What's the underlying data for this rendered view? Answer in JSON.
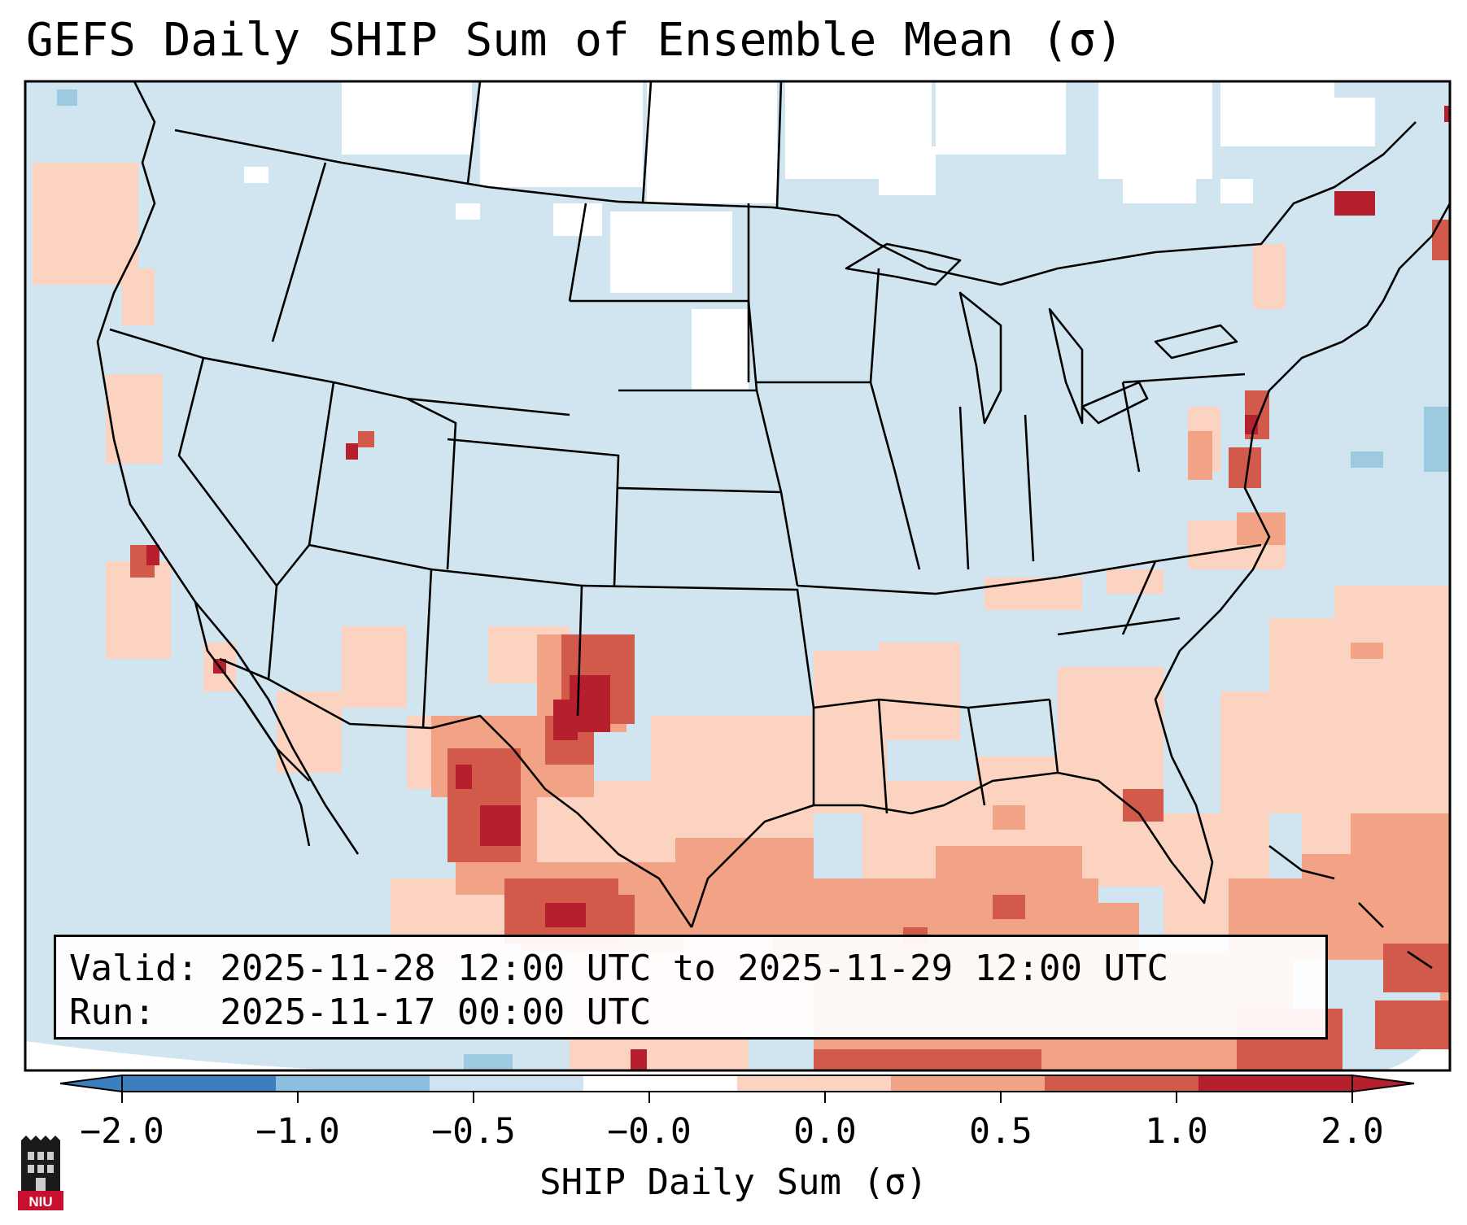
{
  "title": "GEFS Daily SHIP Sum of Ensemble Mean (σ)",
  "info": {
    "valid_line": "Valid: 2025-11-28 12:00 UTC to 2025-11-29 12:00 UTC",
    "run_line": "Run:   2025-11-17 00:00 UTC"
  },
  "colorbar": {
    "label": "SHIP Daily Sum (σ)",
    "ticks": [
      "−2.0",
      "−1.0",
      "−0.5",
      "−0.0",
      "0.0",
      "0.5",
      "1.0",
      "2.0"
    ],
    "colors": [
      "#3b7fbf",
      "#8dbedf",
      "#cfe3f0",
      "#ffffff",
      "#fcd3c0",
      "#f2a386",
      "#d25a4b",
      "#b51f2e"
    ]
  },
  "logo": {
    "text": "NIU",
    "color": "#c8102e"
  },
  "map": {
    "background_color": "#d1e5f0",
    "no_data_color": "#ffffff"
  }
}
